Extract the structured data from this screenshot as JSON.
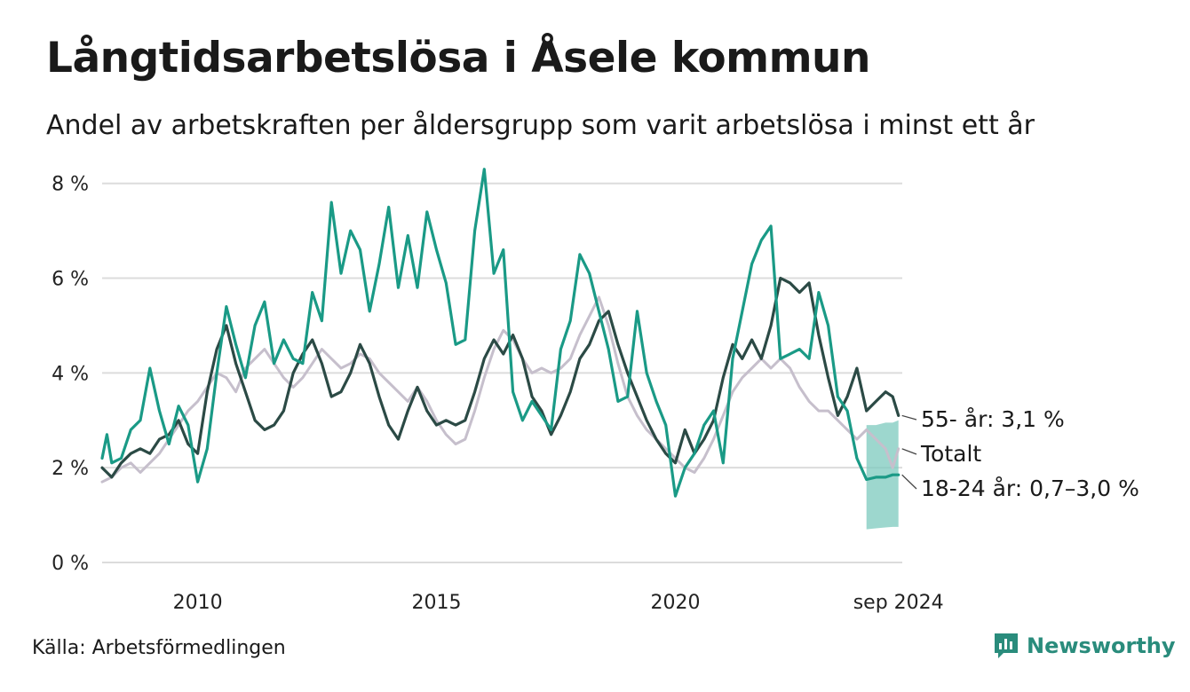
{
  "title": "Långtidsarbetslösa i Åsele kommun",
  "subtitle": "Andel av arbetskraften per åldersgrupp som varit arbetslösa i minst ett år",
  "source": "Källa: Arbetsförmedlingen",
  "brand": "Newsworthy",
  "colors": {
    "youth": "#1a9a86",
    "older": "#2b4a45",
    "total": "#c6bfcc",
    "band": "#7ccabd",
    "grid": "#dcdcdc",
    "brand": "#2a8c7c"
  },
  "chart_data": {
    "type": "line",
    "x_unit": "year (decimal)",
    "xlim": [
      2008.0,
      2024.75
    ],
    "ylim": [
      0,
      8.5
    ],
    "y_ticks": [
      0,
      2,
      4,
      6,
      8
    ],
    "y_tick_labels": [
      "0 %",
      "2 %",
      "4 %",
      "6 %",
      "8 %"
    ],
    "x_ticks": [
      2010,
      2015,
      2020,
      2024.67
    ],
    "x_tick_labels": [
      "2010",
      "2015",
      "2020",
      "sep 2024"
    ],
    "grid": true,
    "series": [
      {
        "name": "Totalt",
        "label": "Totalt",
        "color": "#c6bfcc",
        "points": [
          [
            2008.0,
            1.7
          ],
          [
            2008.2,
            1.8
          ],
          [
            2008.4,
            2.0
          ],
          [
            2008.6,
            2.1
          ],
          [
            2008.8,
            1.9
          ],
          [
            2009.0,
            2.1
          ],
          [
            2009.2,
            2.3
          ],
          [
            2009.4,
            2.6
          ],
          [
            2009.6,
            2.9
          ],
          [
            2009.8,
            3.2
          ],
          [
            2010.0,
            3.4
          ],
          [
            2010.2,
            3.7
          ],
          [
            2010.4,
            4.0
          ],
          [
            2010.6,
            3.9
          ],
          [
            2010.8,
            3.6
          ],
          [
            2011.0,
            4.1
          ],
          [
            2011.2,
            4.3
          ],
          [
            2011.4,
            4.5
          ],
          [
            2011.6,
            4.2
          ],
          [
            2011.8,
            3.9
          ],
          [
            2012.0,
            3.7
          ],
          [
            2012.2,
            3.9
          ],
          [
            2012.4,
            4.2
          ],
          [
            2012.6,
            4.5
          ],
          [
            2012.8,
            4.3
          ],
          [
            2013.0,
            4.1
          ],
          [
            2013.2,
            4.2
          ],
          [
            2013.4,
            4.4
          ],
          [
            2013.6,
            4.3
          ],
          [
            2013.8,
            4.0
          ],
          [
            2014.0,
            3.8
          ],
          [
            2014.2,
            3.6
          ],
          [
            2014.4,
            3.4
          ],
          [
            2014.6,
            3.7
          ],
          [
            2014.8,
            3.4
          ],
          [
            2015.0,
            3.0
          ],
          [
            2015.2,
            2.7
          ],
          [
            2015.4,
            2.5
          ],
          [
            2015.6,
            2.6
          ],
          [
            2015.8,
            3.2
          ],
          [
            2016.0,
            3.9
          ],
          [
            2016.2,
            4.5
          ],
          [
            2016.4,
            4.9
          ],
          [
            2016.6,
            4.7
          ],
          [
            2016.8,
            4.3
          ],
          [
            2017.0,
            4.0
          ],
          [
            2017.2,
            4.1
          ],
          [
            2017.4,
            4.0
          ],
          [
            2017.6,
            4.1
          ],
          [
            2017.8,
            4.3
          ],
          [
            2018.0,
            4.8
          ],
          [
            2018.2,
            5.2
          ],
          [
            2018.4,
            5.6
          ],
          [
            2018.6,
            5.0
          ],
          [
            2018.8,
            4.2
          ],
          [
            2019.0,
            3.5
          ],
          [
            2019.2,
            3.1
          ],
          [
            2019.4,
            2.8
          ],
          [
            2019.6,
            2.6
          ],
          [
            2019.8,
            2.4
          ],
          [
            2020.0,
            2.2
          ],
          [
            2020.2,
            2.0
          ],
          [
            2020.4,
            1.9
          ],
          [
            2020.6,
            2.2
          ],
          [
            2020.8,
            2.6
          ],
          [
            2021.0,
            3.1
          ],
          [
            2021.2,
            3.6
          ],
          [
            2021.4,
            3.9
          ],
          [
            2021.6,
            4.1
          ],
          [
            2021.8,
            4.3
          ],
          [
            2022.0,
            4.1
          ],
          [
            2022.2,
            4.3
          ],
          [
            2022.4,
            4.1
          ],
          [
            2022.6,
            3.7
          ],
          [
            2022.8,
            3.4
          ],
          [
            2023.0,
            3.2
          ],
          [
            2023.2,
            3.2
          ],
          [
            2023.4,
            3.0
          ],
          [
            2023.6,
            2.8
          ],
          [
            2023.8,
            2.6
          ],
          [
            2024.0,
            2.8
          ],
          [
            2024.2,
            2.6
          ],
          [
            2024.4,
            2.4
          ],
          [
            2024.55,
            2.0
          ],
          [
            2024.67,
            2.4
          ]
        ]
      },
      {
        "name": "55- år",
        "label": "55- år: 3,1 %",
        "color": "#2b4a45",
        "points": [
          [
            2008.0,
            2.0
          ],
          [
            2008.2,
            1.8
          ],
          [
            2008.4,
            2.1
          ],
          [
            2008.6,
            2.3
          ],
          [
            2008.8,
            2.4
          ],
          [
            2009.0,
            2.3
          ],
          [
            2009.2,
            2.6
          ],
          [
            2009.4,
            2.7
          ],
          [
            2009.6,
            3.0
          ],
          [
            2009.8,
            2.5
          ],
          [
            2010.0,
            2.3
          ],
          [
            2010.2,
            3.6
          ],
          [
            2010.4,
            4.5
          ],
          [
            2010.6,
            5.0
          ],
          [
            2010.8,
            4.2
          ],
          [
            2011.0,
            3.6
          ],
          [
            2011.2,
            3.0
          ],
          [
            2011.4,
            2.8
          ],
          [
            2011.6,
            2.9
          ],
          [
            2011.8,
            3.2
          ],
          [
            2012.0,
            4.0
          ],
          [
            2012.2,
            4.4
          ],
          [
            2012.4,
            4.7
          ],
          [
            2012.6,
            4.2
          ],
          [
            2012.8,
            3.5
          ],
          [
            2013.0,
            3.6
          ],
          [
            2013.2,
            4.0
          ],
          [
            2013.4,
            4.6
          ],
          [
            2013.6,
            4.2
          ],
          [
            2013.8,
            3.5
          ],
          [
            2014.0,
            2.9
          ],
          [
            2014.2,
            2.6
          ],
          [
            2014.4,
            3.2
          ],
          [
            2014.6,
            3.7
          ],
          [
            2014.8,
            3.2
          ],
          [
            2015.0,
            2.9
          ],
          [
            2015.2,
            3.0
          ],
          [
            2015.4,
            2.9
          ],
          [
            2015.6,
            3.0
          ],
          [
            2015.8,
            3.6
          ],
          [
            2016.0,
            4.3
          ],
          [
            2016.2,
            4.7
          ],
          [
            2016.4,
            4.4
          ],
          [
            2016.6,
            4.8
          ],
          [
            2016.8,
            4.3
          ],
          [
            2017.0,
            3.5
          ],
          [
            2017.2,
            3.2
          ],
          [
            2017.4,
            2.7
          ],
          [
            2017.6,
            3.1
          ],
          [
            2017.8,
            3.6
          ],
          [
            2018.0,
            4.3
          ],
          [
            2018.2,
            4.6
          ],
          [
            2018.4,
            5.1
          ],
          [
            2018.6,
            5.3
          ],
          [
            2018.8,
            4.6
          ],
          [
            2019.0,
            4.0
          ],
          [
            2019.2,
            3.5
          ],
          [
            2019.4,
            3.0
          ],
          [
            2019.6,
            2.6
          ],
          [
            2019.8,
            2.3
          ],
          [
            2020.0,
            2.1
          ],
          [
            2020.2,
            2.8
          ],
          [
            2020.4,
            2.3
          ],
          [
            2020.6,
            2.6
          ],
          [
            2020.8,
            3.0
          ],
          [
            2021.0,
            3.9
          ],
          [
            2021.2,
            4.6
          ],
          [
            2021.4,
            4.3
          ],
          [
            2021.6,
            4.7
          ],
          [
            2021.8,
            4.3
          ],
          [
            2022.0,
            5.0
          ],
          [
            2022.2,
            6.0
          ],
          [
            2022.4,
            5.9
          ],
          [
            2022.6,
            5.7
          ],
          [
            2022.8,
            5.9
          ],
          [
            2023.0,
            4.8
          ],
          [
            2023.2,
            3.9
          ],
          [
            2023.4,
            3.1
          ],
          [
            2023.6,
            3.5
          ],
          [
            2023.8,
            4.1
          ],
          [
            2024.0,
            3.2
          ],
          [
            2024.2,
            3.4
          ],
          [
            2024.4,
            3.6
          ],
          [
            2024.55,
            3.5
          ],
          [
            2024.67,
            3.1
          ]
        ]
      },
      {
        "name": "18-24 år",
        "label": "18-24 år: 0,7–3,0 %",
        "color": "#1a9a86",
        "points": [
          [
            2008.0,
            2.2
          ],
          [
            2008.1,
            2.7
          ],
          [
            2008.2,
            2.1
          ],
          [
            2008.4,
            2.2
          ],
          [
            2008.6,
            2.8
          ],
          [
            2008.8,
            3.0
          ],
          [
            2009.0,
            4.1
          ],
          [
            2009.2,
            3.2
          ],
          [
            2009.4,
            2.5
          ],
          [
            2009.6,
            3.3
          ],
          [
            2009.8,
            2.9
          ],
          [
            2010.0,
            1.7
          ],
          [
            2010.2,
            2.4
          ],
          [
            2010.4,
            4.0
          ],
          [
            2010.6,
            5.4
          ],
          [
            2010.8,
            4.6
          ],
          [
            2011.0,
            3.9
          ],
          [
            2011.2,
            5.0
          ],
          [
            2011.4,
            5.5
          ],
          [
            2011.6,
            4.2
          ],
          [
            2011.8,
            4.7
          ],
          [
            2012.0,
            4.3
          ],
          [
            2012.2,
            4.2
          ],
          [
            2012.4,
            5.7
          ],
          [
            2012.6,
            5.1
          ],
          [
            2012.8,
            7.6
          ],
          [
            2013.0,
            6.1
          ],
          [
            2013.2,
            7.0
          ],
          [
            2013.4,
            6.6
          ],
          [
            2013.6,
            5.3
          ],
          [
            2013.8,
            6.3
          ],
          [
            2014.0,
            7.5
          ],
          [
            2014.2,
            5.8
          ],
          [
            2014.4,
            6.9
          ],
          [
            2014.6,
            5.8
          ],
          [
            2014.8,
            7.4
          ],
          [
            2015.0,
            6.6
          ],
          [
            2015.2,
            5.9
          ],
          [
            2015.4,
            4.6
          ],
          [
            2015.6,
            4.7
          ],
          [
            2015.8,
            7.0
          ],
          [
            2016.0,
            8.3
          ],
          [
            2016.2,
            6.1
          ],
          [
            2016.4,
            6.6
          ],
          [
            2016.6,
            3.6
          ],
          [
            2016.8,
            3.0
          ],
          [
            2017.0,
            3.4
          ],
          [
            2017.2,
            3.1
          ],
          [
            2017.4,
            2.8
          ],
          [
            2017.6,
            4.5
          ],
          [
            2017.8,
            5.1
          ],
          [
            2018.0,
            6.5
          ],
          [
            2018.2,
            6.1
          ],
          [
            2018.4,
            5.3
          ],
          [
            2018.6,
            4.5
          ],
          [
            2018.8,
            3.4
          ],
          [
            2019.0,
            3.5
          ],
          [
            2019.2,
            5.3
          ],
          [
            2019.4,
            4.0
          ],
          [
            2019.6,
            3.4
          ],
          [
            2019.8,
            2.9
          ],
          [
            2020.0,
            1.4
          ],
          [
            2020.2,
            2.0
          ],
          [
            2020.4,
            2.3
          ],
          [
            2020.6,
            2.9
          ],
          [
            2020.8,
            3.2
          ],
          [
            2021.0,
            2.1
          ],
          [
            2021.2,
            4.3
          ],
          [
            2021.4,
            5.3
          ],
          [
            2021.6,
            6.3
          ],
          [
            2021.8,
            6.8
          ],
          [
            2022.0,
            7.1
          ],
          [
            2022.2,
            4.3
          ],
          [
            2022.4,
            4.4
          ],
          [
            2022.6,
            4.5
          ],
          [
            2022.8,
            4.3
          ],
          [
            2023.0,
            5.7
          ],
          [
            2023.2,
            5.0
          ],
          [
            2023.4,
            3.5
          ],
          [
            2023.6,
            3.2
          ],
          [
            2023.8,
            2.2
          ],
          [
            2024.0,
            1.75
          ],
          [
            2024.2,
            1.8
          ],
          [
            2024.4,
            1.8
          ],
          [
            2024.55,
            1.85
          ],
          [
            2024.67,
            1.85
          ]
        ]
      }
    ],
    "band": {
      "name": "18-24 år",
      "points": [
        [
          2024.0,
          0.7,
          2.9
        ],
        [
          2024.2,
          0.72,
          2.9
        ],
        [
          2024.4,
          0.74,
          2.95
        ],
        [
          2024.55,
          0.75,
          2.95
        ],
        [
          2024.67,
          0.75,
          3.0
        ]
      ]
    }
  }
}
